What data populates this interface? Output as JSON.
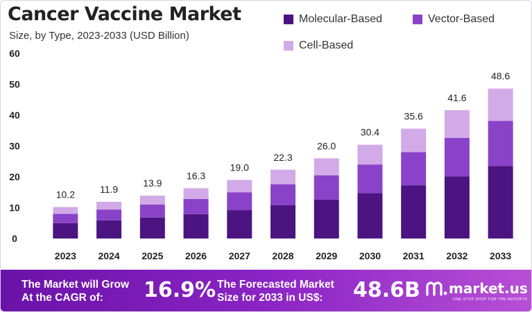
{
  "title": "Cancer Vaccine Market",
  "subtitle": "Size, by Type, 2023-2033 (USD Billion)",
  "legend": [
    {
      "label": "Molecular-Based",
      "color": "#4b1480"
    },
    {
      "label": "Vector-Based",
      "color": "#8a43c8"
    },
    {
      "label": "Cell-Based",
      "color": "#d2aae8"
    }
  ],
  "chart_data": {
    "type": "bar",
    "stacked": true,
    "categories": [
      "2023",
      "2024",
      "2025",
      "2026",
      "2027",
      "2028",
      "2029",
      "2030",
      "2031",
      "2032",
      "2033"
    ],
    "series": [
      {
        "name": "Molecular-Based",
        "color": "#4b1480",
        "values": [
          5.0,
          5.9,
          6.8,
          7.9,
          9.2,
          10.8,
          12.6,
          14.7,
          17.2,
          20.1,
          23.5
        ]
      },
      {
        "name": "Vector-Based",
        "color": "#8a43c8",
        "values": [
          3.0,
          3.5,
          4.2,
          4.9,
          5.8,
          6.8,
          7.9,
          9.3,
          10.8,
          12.5,
          14.6
        ]
      },
      {
        "name": "Cell-Based",
        "color": "#d2aae8",
        "values": [
          2.2,
          2.5,
          2.9,
          3.5,
          4.0,
          4.7,
          5.5,
          6.4,
          7.6,
          9.0,
          10.5
        ]
      }
    ],
    "totals": [
      10.2,
      11.9,
      13.9,
      16.3,
      19.0,
      22.3,
      26.0,
      30.4,
      35.6,
      41.6,
      48.6
    ],
    "total_labels": [
      "10.2",
      "11.9",
      "13.9",
      "16.3",
      "19.0",
      "22.3",
      "26.0",
      "30.4",
      "35.6",
      "41.6",
      "48.6"
    ],
    "yticks": [
      "0",
      "10",
      "20",
      "30",
      "40",
      "50",
      "60"
    ],
    "ylim": [
      0,
      60
    ],
    "xlabel": "",
    "ylabel": "",
    "grid": false,
    "legend_position": "top-right"
  },
  "footer": {
    "grow_line1": "The Market will Grow",
    "grow_line2": "At the CAGR of:",
    "cagr": "16.9%",
    "forecast_line1": "The Forecasted Market",
    "forecast_line2": "Size for 2033 in US$:",
    "forecast_value": "48.6B",
    "logo_name": "market.us",
    "logo_tagline": "ONE STOP SHOP FOR THE REPORTS",
    "logo_icon": "market-us-logo-icon"
  }
}
